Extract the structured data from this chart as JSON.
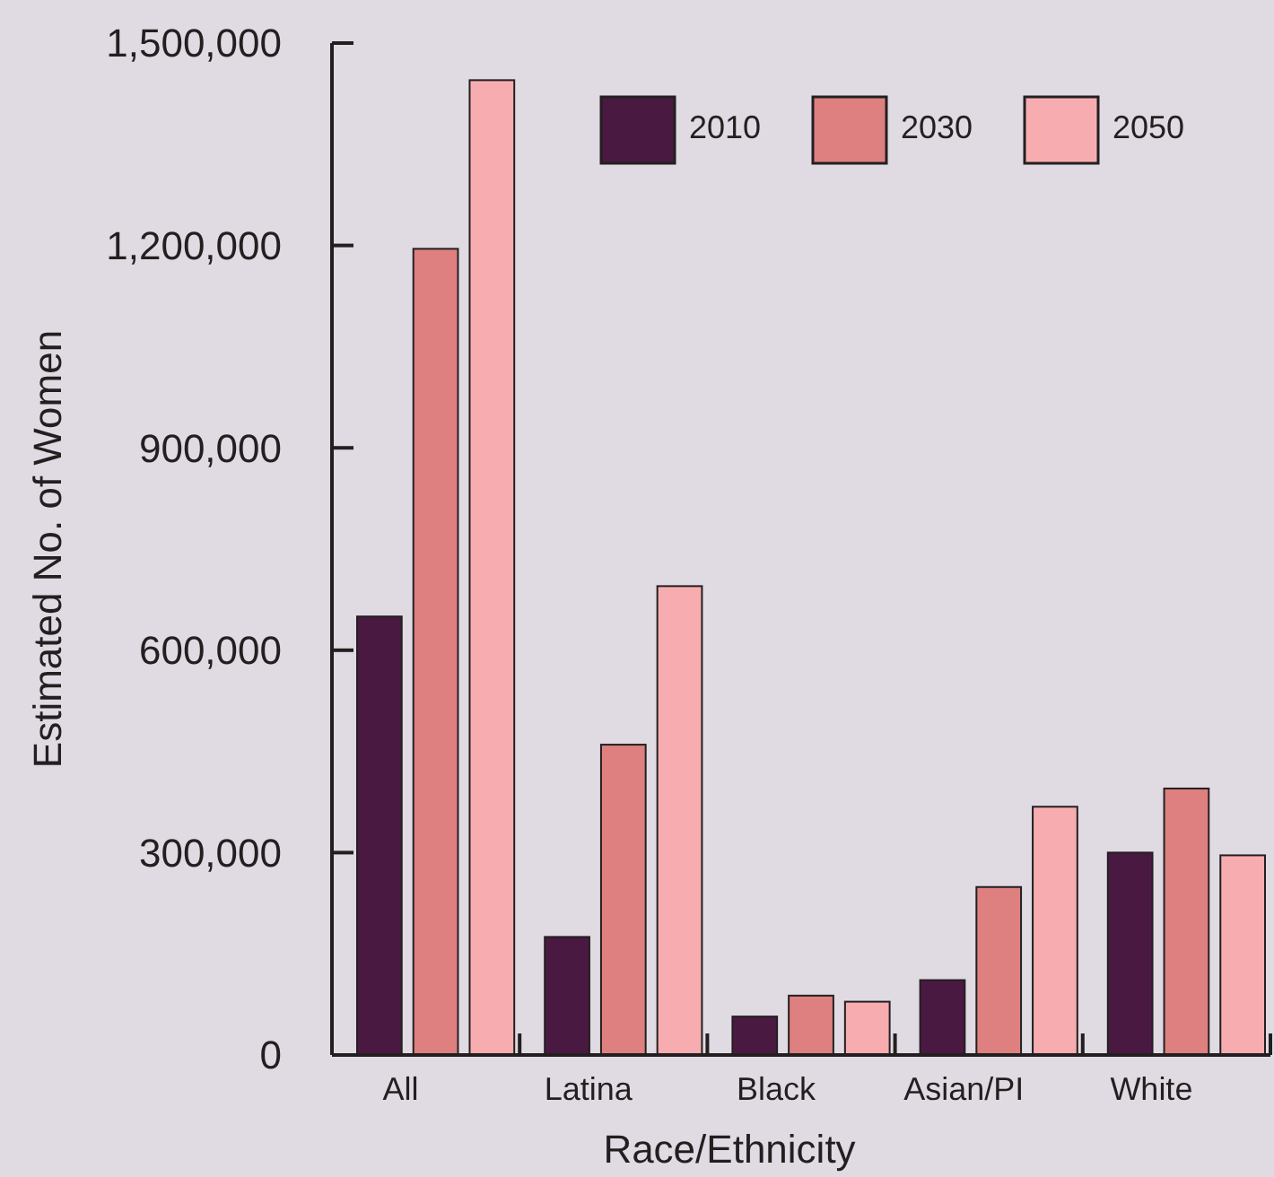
{
  "chart_data": {
    "type": "bar",
    "xlabel": "Race/Ethnicity",
    "ylabel": "Estimated No. of Women",
    "categories": [
      "All",
      "Latina",
      "Black",
      "Asian/PI",
      "White"
    ],
    "series": [
      {
        "name": "2010",
        "color": "#4a1942",
        "values": [
          650000,
          175000,
          57000,
          111000,
          300000
        ]
      },
      {
        "name": "2030",
        "color": "#de8080",
        "values": [
          1195000,
          460000,
          88000,
          249000,
          395000
        ]
      },
      {
        "name": "2050",
        "color": "#f7adb0",
        "values": [
          1445000,
          695000,
          79000,
          368000,
          296000
        ]
      }
    ],
    "ylim": [
      0,
      1500000
    ],
    "yticks": [
      {
        "value": 0,
        "label": "0"
      },
      {
        "value": 300000,
        "label": "300,000"
      },
      {
        "value": 600000,
        "label": "600,000"
      },
      {
        "value": 900000,
        "label": "900,000"
      },
      {
        "value": 1200000,
        "label": "1,200,000"
      },
      {
        "value": 1500000,
        "label": "1,500,000"
      }
    ],
    "grid": false,
    "legend": "top right"
  }
}
